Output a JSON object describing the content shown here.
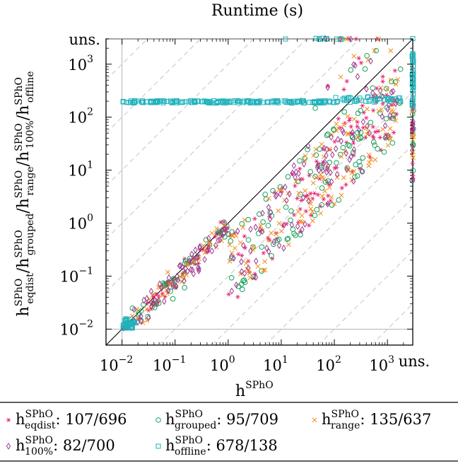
{
  "chart_data": {
    "type": "scatter",
    "title": "Runtime (s)",
    "xlabel": "h^SPhO",
    "ylabel_series": [
      "h^SPhO_eqdist",
      "h^SPhO_grouped",
      "h^SPhO_range",
      "h^SPhO_100%",
      "h^SPhO_offline"
    ],
    "xscale": "log",
    "yscale": "log",
    "xlim": [
      0.005,
      3000
    ],
    "ylim": [
      0.005,
      3000
    ],
    "x_ticks": [
      "10^-2",
      "10^-1",
      "10^0",
      "10^1",
      "10^2",
      "10^3"
    ],
    "y_ticks": [
      "10^-2",
      "10^-1",
      "10^0",
      "10^1",
      "10^2",
      "10^3"
    ],
    "unsolved_label": "uns.",
    "diagonal_reference": true,
    "factor_guides": "dashed gray lines at 10^k factors",
    "series": [
      {
        "name": "eqdist",
        "marker": "star",
        "color": "#e6196b",
        "label_main": "h",
        "label_sup": "SPhO",
        "label_sub": "eqdist",
        "count": ": 107/696"
      },
      {
        "name": "grouped",
        "marker": "circle",
        "color": "#1aa05a",
        "label_main": "h",
        "label_sup": "SPhO",
        "label_sub": "grouped",
        "count": ": 95/709"
      },
      {
        "name": "range",
        "marker": "cross",
        "color": "#f28c1a",
        "label_main": "h",
        "label_sup": "SPhO",
        "label_sub": "range",
        "count": ": 135/637"
      },
      {
        "name": "100pct",
        "marker": "diamond",
        "color": "#9c3a8e",
        "label_main": "h",
        "label_sup": "SPhO",
        "label_sub": "100%",
        "count": ": 82/700"
      },
      {
        "name": "offline",
        "marker": "square",
        "color": "#1fb2bb",
        "label_main": "h",
        "label_sup": "SPhO",
        "label_sub": "offline",
        "count": ": 678/138"
      }
    ]
  }
}
